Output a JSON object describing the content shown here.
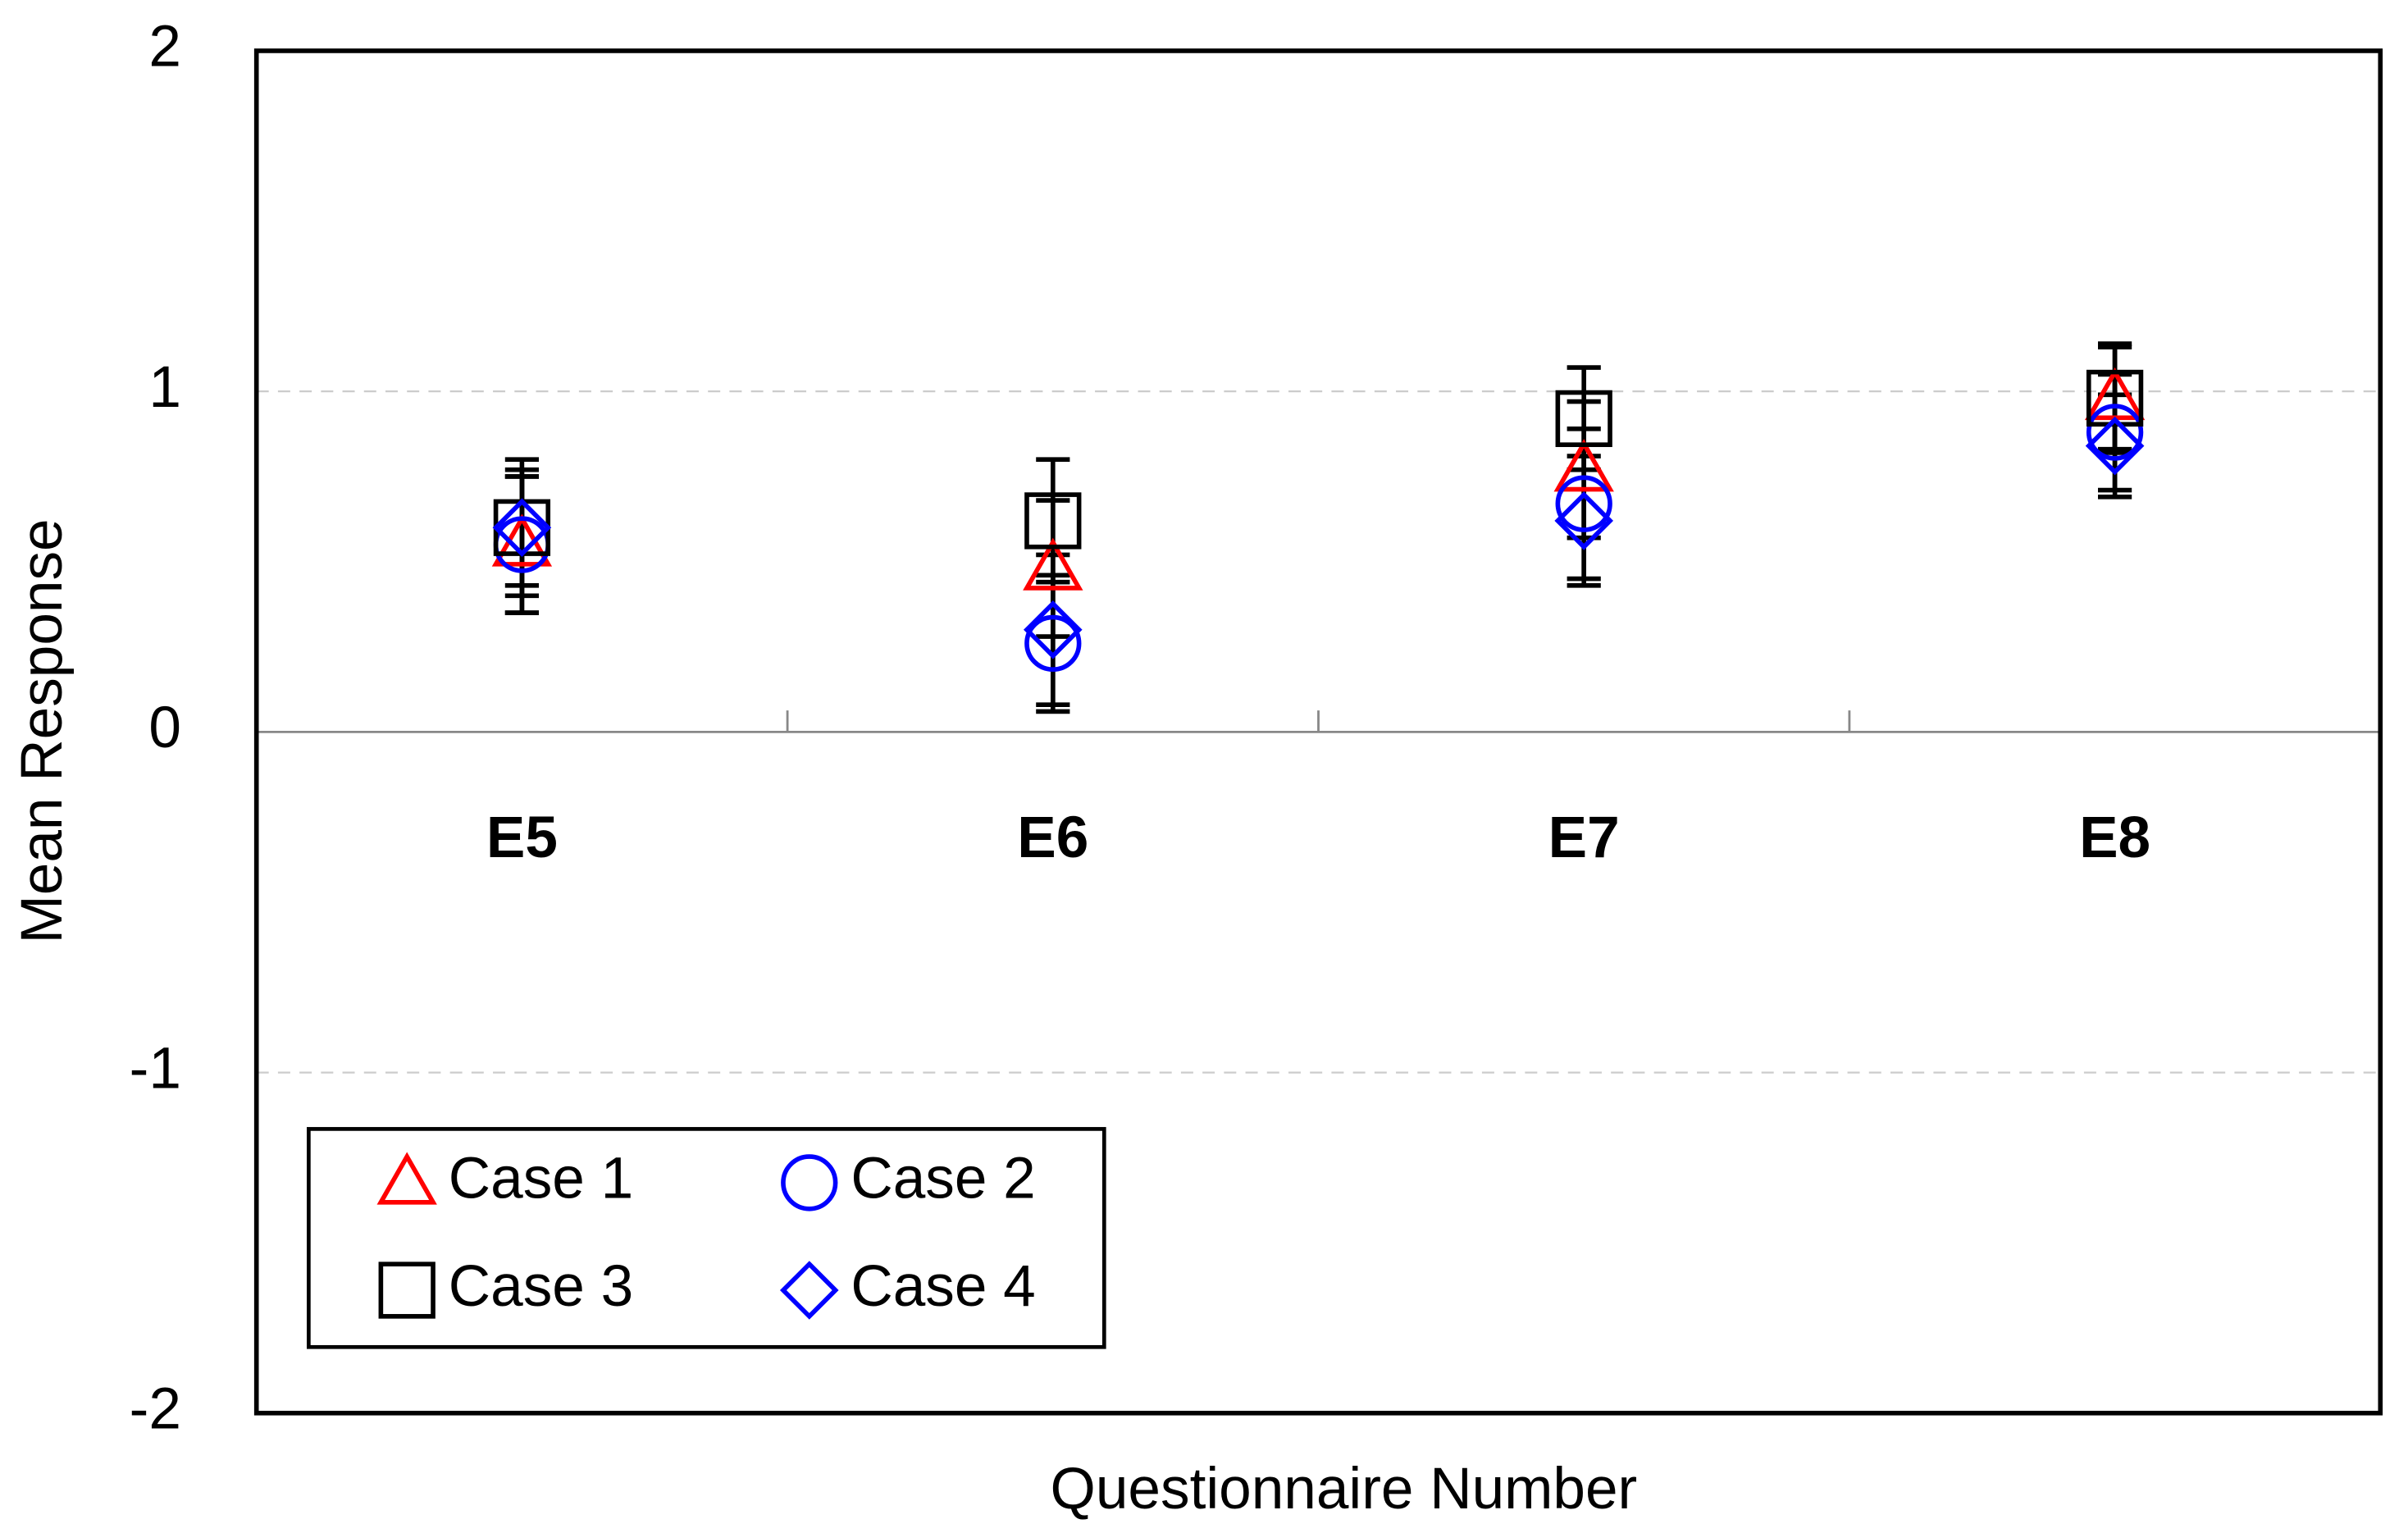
{
  "chart_data": {
    "type": "errorbar",
    "x_label": "Questionnaire Number",
    "y_label": "Mean Response",
    "categories": [
      "E5",
      "E6",
      "E7",
      "E8"
    ],
    "ylim": [
      -2,
      2
    ],
    "yticks": [
      -2,
      -1,
      0,
      1,
      2
    ],
    "grid": true,
    "legend": "lower left",
    "series": [
      {
        "name": "Case 1",
        "color": "#ff0000",
        "marker": "triangle",
        "values": [
          0.55,
          0.48,
          0.77,
          0.98
        ],
        "errors": [
          0.2,
          0.2,
          0.2,
          0.15
        ]
      },
      {
        "name": "Case 2",
        "color": "#0000ff",
        "marker": "circle",
        "values": [
          0.55,
          0.26,
          0.67,
          0.88
        ],
        "errors": [
          0.2,
          0.2,
          0.22,
          0.17
        ]
      },
      {
        "name": "Case 3",
        "color": "#000000",
        "marker": "square",
        "values": [
          0.6,
          0.62,
          0.92,
          0.98
        ],
        "errors": [
          0.17,
          0.18,
          0.15,
          0.16
        ]
      },
      {
        "name": "Case 4",
        "color": "#0000ff",
        "marker": "diamond",
        "values": [
          0.6,
          0.3,
          0.62,
          0.84
        ],
        "errors": [
          0.2,
          0.22,
          0.19,
          0.15
        ]
      }
    ]
  }
}
